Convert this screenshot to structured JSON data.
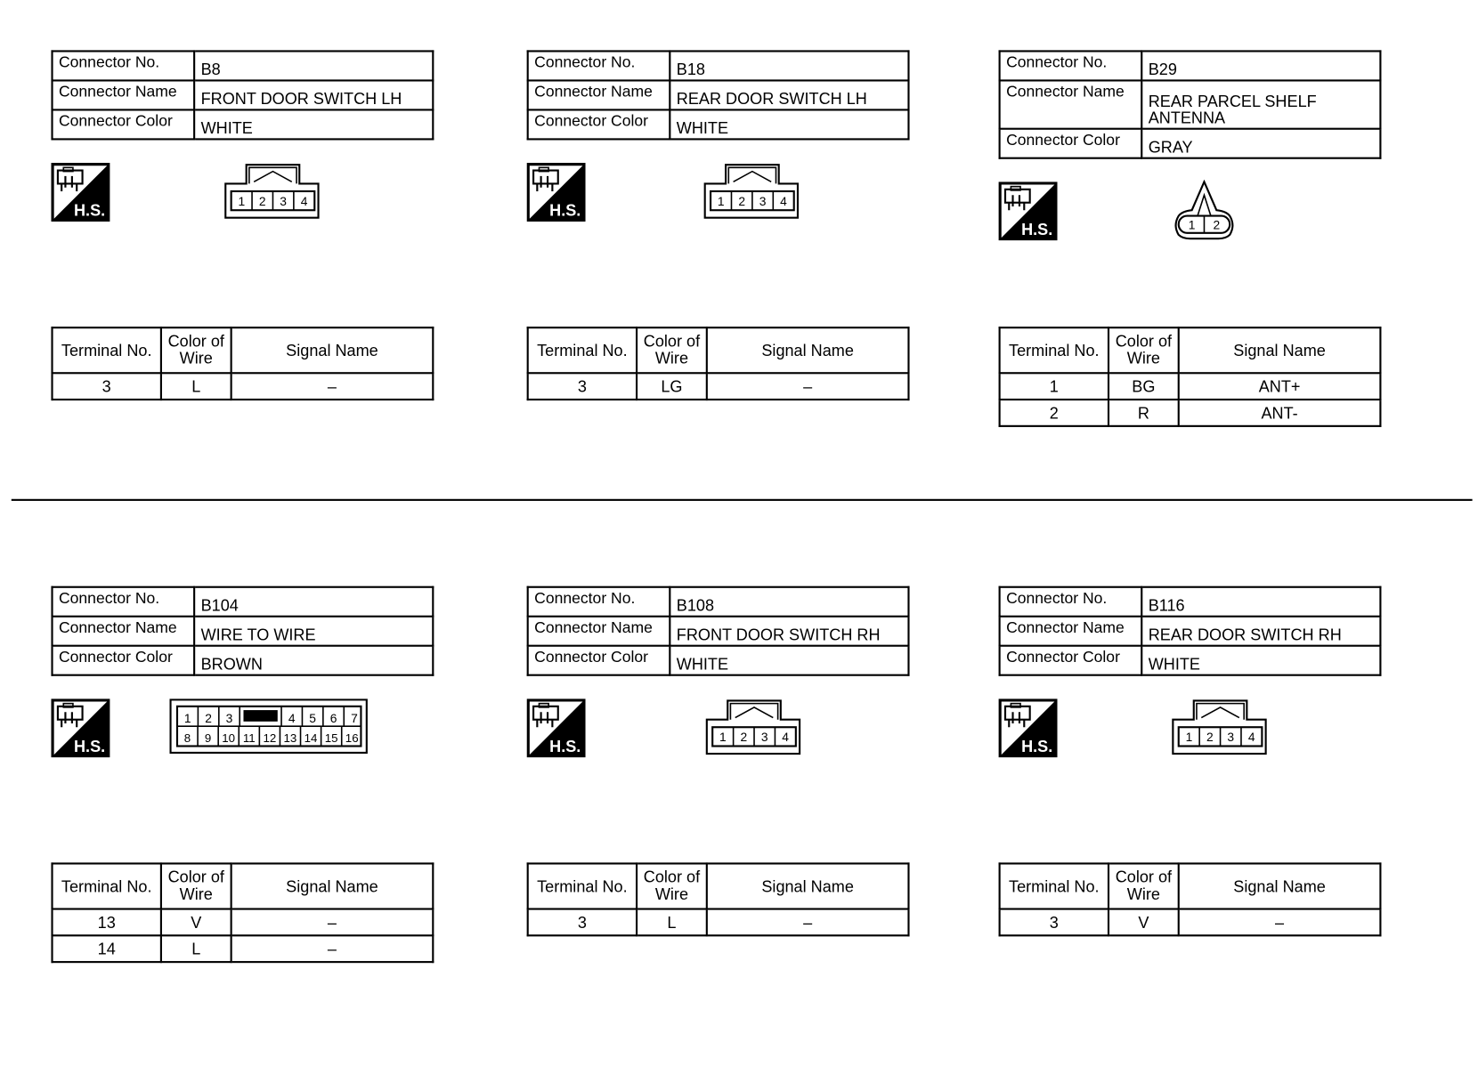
{
  "labels": {
    "connector_no": "Connector No.",
    "connector_name": "Connector Name",
    "connector_color": "Connector Color",
    "terminal_no": "Terminal No.",
    "color_of_wire_1": "Color of",
    "color_of_wire_2": "Wire",
    "signal_name": "Signal Name",
    "hs_badge": "H.S."
  },
  "connectors": [
    {
      "no": "B8",
      "name": "FRONT DOOR SWITCH LH",
      "name2": "",
      "color": "WHITE",
      "connector_icon": "4-pin-connector-icon",
      "pins": [
        "1",
        "2",
        "3",
        "4"
      ],
      "terminals": [
        {
          "terminal": "3",
          "wire": "L",
          "signal": "–"
        }
      ]
    },
    {
      "no": "B18",
      "name": "REAR DOOR SWITCH LH",
      "name2": "",
      "color": "WHITE",
      "connector_icon": "4-pin-connector-icon",
      "pins": [
        "1",
        "2",
        "3",
        "4"
      ],
      "terminals": [
        {
          "terminal": "3",
          "wire": "LG",
          "signal": "–"
        }
      ]
    },
    {
      "no": "B29",
      "name": "REAR PARCEL SHELF",
      "name2": "ANTENNA",
      "color": "GRAY",
      "connector_icon": "2-pin-round-connector-icon",
      "pins": [
        "1",
        "2"
      ],
      "terminals": [
        {
          "terminal": "1",
          "wire": "BG",
          "signal": "ANT+"
        },
        {
          "terminal": "2",
          "wire": "R",
          "signal": "ANT-"
        }
      ]
    },
    {
      "no": "B104",
      "name": "WIRE TO WIRE",
      "name2": "",
      "color": "BROWN",
      "connector_icon": "16-pin-connector-icon",
      "pins": [
        "1",
        "2",
        "3",
        "4",
        "5",
        "6",
        "7",
        "8",
        "9",
        "10",
        "11",
        "12",
        "13",
        "14",
        "15",
        "16"
      ],
      "terminals": [
        {
          "terminal": "13",
          "wire": "V",
          "signal": "–"
        },
        {
          "terminal": "14",
          "wire": "L",
          "signal": "–"
        }
      ]
    },
    {
      "no": "B108",
      "name": "FRONT DOOR SWITCH RH",
      "name2": "",
      "color": "WHITE",
      "connector_icon": "4-pin-connector-icon",
      "pins": [
        "1",
        "2",
        "3",
        "4"
      ],
      "terminals": [
        {
          "terminal": "3",
          "wire": "L",
          "signal": "–"
        }
      ]
    },
    {
      "no": "B116",
      "name": "REAR DOOR SWITCH RH",
      "name2": "",
      "color": "WHITE",
      "connector_icon": "4-pin-connector-icon",
      "pins": [
        "1",
        "2",
        "3",
        "4"
      ],
      "terminals": [
        {
          "terminal": "3",
          "wire": "V",
          "signal": "–"
        }
      ]
    }
  ]
}
